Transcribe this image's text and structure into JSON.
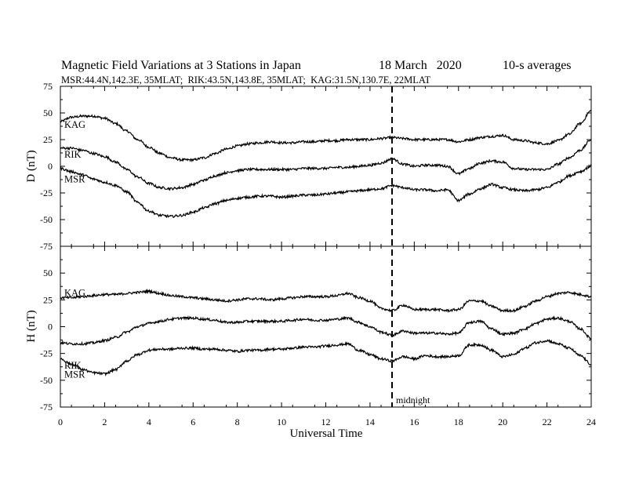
{
  "chart_data": {
    "type": "line",
    "title": "Magnetic Field Variations at 3 Stations in Japan",
    "date": "18 March   2020",
    "averaging": "10-s averages",
    "subtitle": "MSR:44.4N,142.3E, 35MLAT;  RIK:43.5N,143.8E, 35MLAT;  KAG:31.5N,130.7E, 22MLAT",
    "xlabel": "Universal Time",
    "xlim": [
      0,
      24
    ],
    "xticks": [
      0,
      2,
      4,
      6,
      8,
      10,
      12,
      14,
      16,
      18,
      20,
      22,
      24
    ],
    "annotation": {
      "x": 15,
      "label": "midnight"
    },
    "panels": [
      {
        "ylabel": "D (nT)",
        "ylim": [
          -75,
          75
        ],
        "yticks": [
          75,
          50,
          25,
          0,
          -25,
          -50,
          -75
        ],
        "series": [
          {
            "name": "KAG",
            "x": [
              0,
              0.5,
              1,
              1.5,
              2,
              2.5,
              3,
              3.5,
              4,
              4.5,
              5,
              5.5,
              6,
              6.5,
              7,
              7.5,
              8,
              8.5,
              9,
              9.5,
              10,
              10.5,
              11,
              11.5,
              12,
              12.5,
              13,
              13.5,
              14,
              14.5,
              15,
              15.5,
              16,
              16.5,
              17,
              17.5,
              18,
              18.5,
              19,
              19.5,
              20,
              20.5,
              21,
              21.5,
              22,
              22.5,
              23,
              23.5,
              24
            ],
            "values": [
              42,
              46,
              47,
              47,
              45,
              40,
              33,
              25,
              18,
              12,
              8,
              6,
              6,
              8,
              12,
              16,
              19,
              21,
              22,
              23,
              22,
              22,
              23,
              23,
              24,
              24,
              25,
              25,
              25,
              26,
              27,
              26,
              25,
              25,
              25,
              25,
              23,
              25,
              27,
              28,
              29,
              25,
              24,
              22,
              21,
              24,
              30,
              40,
              52
            ]
          },
          {
            "name": "RIK",
            "x": [
              0,
              0.5,
              1,
              1.5,
              2,
              2.5,
              3,
              3.5,
              4,
              4.5,
              5,
              5.5,
              6,
              6.5,
              7,
              7.5,
              8,
              8.5,
              9,
              9.5,
              10,
              10.5,
              11,
              11.5,
              12,
              12.5,
              13,
              13.5,
              14,
              14.5,
              15,
              15.5,
              16,
              16.5,
              17,
              17.5,
              18,
              18.5,
              19,
              19.5,
              20,
              20.5,
              21,
              21.5,
              22,
              22.5,
              23,
              23.5,
              24
            ],
            "values": [
              17,
              17,
              15,
              12,
              9,
              4,
              -3,
              -10,
              -16,
              -20,
              -21,
              -20,
              -17,
              -13,
              -9,
              -6,
              -4,
              -3,
              -3,
              -3,
              -3,
              -3,
              -2,
              -2,
              -2,
              -1,
              -1,
              0,
              1,
              3,
              7,
              2,
              0,
              1,
              1,
              0,
              -7,
              -2,
              3,
              5,
              4,
              -2,
              -3,
              -3,
              -3,
              2,
              8,
              15,
              25
            ]
          },
          {
            "name": "MSR",
            "x": [
              0,
              0.5,
              1,
              1.5,
              2,
              2.5,
              3,
              3.5,
              4,
              4.5,
              5,
              5.5,
              6,
              6.5,
              7,
              7.5,
              8,
              8.5,
              9,
              9.5,
              10,
              10.5,
              11,
              11.5,
              12,
              12.5,
              13,
              13.5,
              14,
              14.5,
              15,
              15.5,
              16,
              16.5,
              17,
              17.5,
              18,
              18.5,
              19,
              19.5,
              20,
              20.5,
              21,
              21.5,
              22,
              22.5,
              23,
              23.5,
              24
            ],
            "values": [
              -2,
              -5,
              -8,
              -12,
              -15,
              -18,
              -24,
              -34,
              -42,
              -46,
              -47,
              -46,
              -43,
              -39,
              -35,
              -32,
              -30,
              -29,
              -28,
              -28,
              -29,
              -28,
              -27,
              -27,
              -26,
              -25,
              -24,
              -23,
              -22,
              -21,
              -18,
              -20,
              -22,
              -22,
              -23,
              -22,
              -32,
              -26,
              -21,
              -17,
              -20,
              -22,
              -23,
              -22,
              -20,
              -15,
              -9,
              -5,
              0
            ]
          }
        ]
      },
      {
        "ylabel": "H (nT)",
        "ylim": [
          -75,
          75
        ],
        "yticks": [
          75,
          50,
          25,
          0,
          -25,
          -50,
          -75
        ],
        "series": [
          {
            "name": "KAG",
            "x": [
              0,
              0.5,
              1,
              1.5,
              2,
              2.5,
              3,
              3.5,
              4,
              4.5,
              5,
              5.5,
              6,
              6.5,
              7,
              7.5,
              8,
              8.5,
              9,
              9.5,
              10,
              10.5,
              11,
              11.5,
              12,
              12.5,
              13,
              13.5,
              14,
              14.5,
              15,
              15.5,
              16,
              16.5,
              17,
              17.5,
              18,
              18.5,
              19,
              19.5,
              20,
              20.5,
              21,
              21.5,
              22,
              22.5,
              23,
              23.5,
              24
            ],
            "values": [
              27,
              27,
              28,
              29,
              30,
              30,
              31,
              32,
              33,
              31,
              29,
              28,
              27,
              26,
              25,
              24,
              25,
              26,
              26,
              25,
              26,
              27,
              28,
              28,
              28,
              29,
              31,
              27,
              24,
              17,
              15,
              20,
              16,
              16,
              16,
              15,
              16,
              24,
              24,
              19,
              15,
              15,
              19,
              24,
              28,
              31,
              32,
              30,
              28
            ]
          },
          {
            "name": "RIK",
            "x": [
              0,
              0.5,
              1,
              1.5,
              2,
              2.5,
              3,
              3.5,
              4,
              4.5,
              5,
              5.5,
              6,
              6.5,
              7,
              7.5,
              8,
              8.5,
              9,
              9.5,
              10,
              10.5,
              11,
              11.5,
              12,
              12.5,
              13,
              13.5,
              14,
              14.5,
              15,
              15.5,
              16,
              16.5,
              17,
              17.5,
              18,
              18.5,
              19,
              19.5,
              20,
              20.5,
              21,
              21.5,
              22,
              22.5,
              23,
              23.5,
              24
            ],
            "values": [
              -15,
              -16,
              -16,
              -15,
              -13,
              -10,
              -5,
              0,
              3,
              5,
              7,
              8,
              8,
              7,
              6,
              4,
              4,
              5,
              5,
              5,
              5,
              6,
              7,
              6,
              6,
              7,
              8,
              4,
              0,
              -5,
              -8,
              -4,
              -6,
              -6,
              -6,
              -7,
              -6,
              4,
              5,
              -2,
              -7,
              -6,
              -2,
              3,
              7,
              8,
              5,
              -2,
              -11
            ]
          },
          {
            "name": "MSR",
            "x": [
              0,
              0.5,
              1,
              1.5,
              2,
              2.5,
              3,
              3.5,
              4,
              4.5,
              5,
              5.5,
              6,
              6.5,
              7,
              7.5,
              8,
              8.5,
              9,
              9.5,
              10,
              10.5,
              11,
              11.5,
              12,
              12.5,
              13,
              13.5,
              14,
              14.5,
              15,
              15.5,
              16,
              16.5,
              17,
              17.5,
              18,
              18.5,
              19,
              19.5,
              20,
              20.5,
              21,
              21.5,
              22,
              22.5,
              23,
              23.5,
              24
            ],
            "values": [
              -30,
              -35,
              -40,
              -43,
              -44,
              -40,
              -32,
              -26,
              -22,
              -21,
              -21,
              -20,
              -20,
              -21,
              -21,
              -22,
              -23,
              -22,
              -22,
              -21,
              -21,
              -20,
              -19,
              -19,
              -18,
              -17,
              -16,
              -22,
              -26,
              -30,
              -32,
              -28,
              -30,
              -27,
              -28,
              -28,
              -27,
              -17,
              -17,
              -22,
              -28,
              -26,
              -20,
              -15,
              -13,
              -16,
              -20,
              -27,
              -35
            ]
          }
        ]
      }
    ]
  }
}
